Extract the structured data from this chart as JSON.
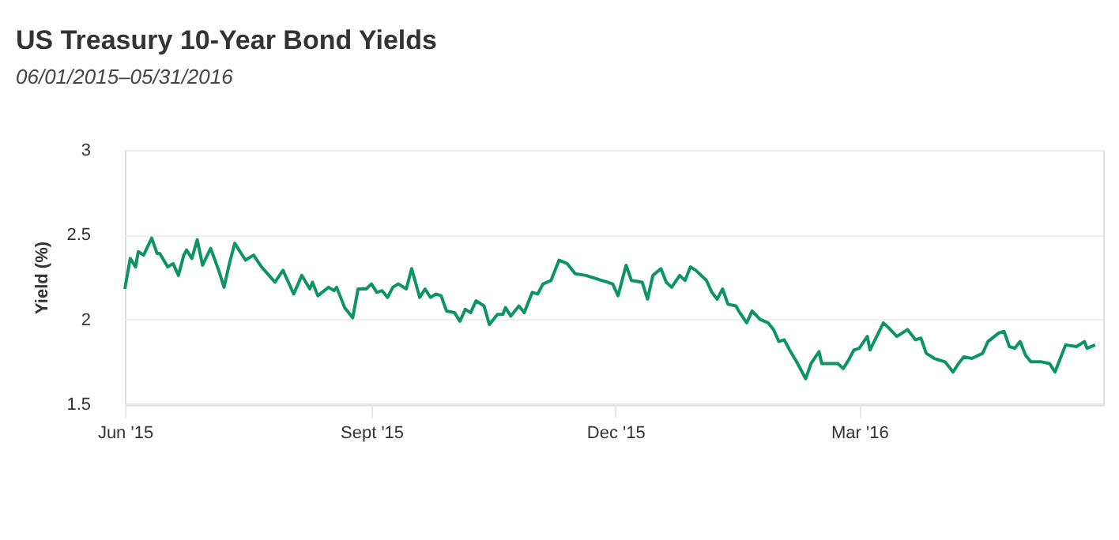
{
  "chart_data": {
    "type": "line",
    "title": "US Treasury 10-Year Bond Yields",
    "subtitle": "06/01/2015–05/31/2016",
    "ylabel": "Yield (%)",
    "xlim": [
      "2015-06-01",
      "2016-05-31"
    ],
    "xticks": [
      {
        "value": "2015-06-01",
        "label": "Jun '15"
      },
      {
        "value": "2015-09-01",
        "label": "Sept '15"
      },
      {
        "value": "2015-12-01",
        "label": "Dec '15"
      },
      {
        "value": "2016-03-01",
        "label": "Mar '16"
      }
    ],
    "ylim": [
      1.5,
      3
    ],
    "yticks": [
      1.5,
      2,
      2.5,
      3
    ],
    "grid": "y",
    "marker": "none",
    "line_style": "solid",
    "x": [
      "2015-06-01",
      "2015-06-03",
      "2015-06-05",
      "2015-06-06",
      "2015-06-08",
      "2015-06-11",
      "2015-06-13",
      "2015-06-14",
      "2015-06-17",
      "2015-06-19",
      "2015-06-21",
      "2015-06-23",
      "2015-06-24",
      "2015-06-26",
      "2015-06-28",
      "2015-06-30",
      "2015-07-03",
      "2015-07-06",
      "2015-07-08",
      "2015-07-10",
      "2015-07-12",
      "2015-07-16",
      "2015-07-19",
      "2015-07-22",
      "2015-07-27",
      "2015-07-30",
      "2015-08-03",
      "2015-08-06",
      "2015-08-09",
      "2015-08-10",
      "2015-08-12",
      "2015-08-16",
      "2015-08-18",
      "2015-08-19",
      "2015-08-22",
      "2015-08-25",
      "2015-08-27",
      "2015-08-30",
      "2015-09-01",
      "2015-09-03",
      "2015-09-05",
      "2015-09-07",
      "2015-09-09",
      "2015-09-11",
      "2015-09-14",
      "2015-09-16",
      "2015-09-19",
      "2015-09-21",
      "2015-09-23",
      "2015-09-25",
      "2015-09-27",
      "2015-09-29",
      "2015-10-02",
      "2015-10-04",
      "2015-10-06",
      "2015-10-08",
      "2015-10-10",
      "2015-10-13",
      "2015-10-15",
      "2015-10-18",
      "2015-10-20",
      "2015-10-21",
      "2015-10-23",
      "2015-10-26",
      "2015-10-28",
      "2015-10-31",
      "2015-11-02",
      "2015-11-04",
      "2015-11-07",
      "2015-11-10",
      "2015-11-13",
      "2015-11-16",
      "2015-11-20",
      "2015-11-24",
      "2015-11-28",
      "2015-11-30",
      "2015-12-02",
      "2015-12-05",
      "2015-12-07",
      "2015-12-11",
      "2015-12-13",
      "2015-12-15",
      "2015-12-18",
      "2015-12-20",
      "2015-12-22",
      "2015-12-25",
      "2015-12-27",
      "2015-12-29",
      "2015-12-31",
      "2016-01-04",
      "2016-01-06",
      "2016-01-08",
      "2016-01-10",
      "2016-01-12",
      "2016-01-15",
      "2016-01-16",
      "2016-01-19",
      "2016-01-21",
      "2016-01-24",
      "2016-01-27",
      "2016-01-29",
      "2016-01-31",
      "2016-02-02",
      "2016-02-04",
      "2016-02-07",
      "2016-02-10",
      "2016-02-12",
      "2016-02-15",
      "2016-02-16",
      "2016-02-19",
      "2016-02-22",
      "2016-02-24",
      "2016-02-26",
      "2016-02-28",
      "2016-03-01",
      "2016-03-04",
      "2016-03-05",
      "2016-03-10",
      "2016-03-12",
      "2016-03-15",
      "2016-03-19",
      "2016-03-22",
      "2016-03-24",
      "2016-03-26",
      "2016-03-29",
      "2016-04-02",
      "2016-04-05",
      "2016-04-07",
      "2016-04-09",
      "2016-04-12",
      "2016-04-16",
      "2016-04-18",
      "2016-04-22",
      "2016-04-24",
      "2016-04-26",
      "2016-04-28",
      "2016-04-30",
      "2016-05-02",
      "2016-05-04",
      "2016-05-08",
      "2016-05-11",
      "2016-05-13",
      "2016-05-15",
      "2016-05-17",
      "2016-05-21",
      "2016-05-24",
      "2016-05-25",
      "2016-05-28"
    ],
    "series": [
      {
        "color": "#0d9465",
        "values": [
          2.18,
          2.36,
          2.31,
          2.4,
          2.38,
          2.48,
          2.39,
          2.39,
          2.31,
          2.33,
          2.26,
          2.38,
          2.41,
          2.36,
          2.47,
          2.32,
          2.42,
          2.29,
          2.19,
          2.33,
          2.45,
          2.35,
          2.38,
          2.31,
          2.22,
          2.29,
          2.15,
          2.26,
          2.18,
          2.22,
          2.14,
          2.19,
          2.17,
          2.19,
          2.07,
          2.01,
          2.18,
          2.18,
          2.21,
          2.16,
          2.17,
          2.13,
          2.19,
          2.21,
          2.18,
          2.3,
          2.13,
          2.18,
          2.13,
          2.15,
          2.14,
          2.05,
          2.04,
          1.99,
          2.06,
          2.04,
          2.11,
          2.08,
          1.97,
          2.03,
          2.03,
          2.07,
          2.02,
          2.08,
          2.04,
          2.16,
          2.15,
          2.21,
          2.23,
          2.35,
          2.33,
          2.27,
          2.26,
          2.24,
          2.22,
          2.21,
          2.14,
          2.32,
          2.23,
          2.22,
          2.12,
          2.26,
          2.3,
          2.22,
          2.19,
          2.26,
          2.23,
          2.31,
          2.29,
          2.23,
          2.16,
          2.12,
          2.18,
          2.09,
          2.08,
          2.05,
          1.98,
          2.05,
          2.0,
          1.98,
          1.94,
          1.87,
          1.88,
          1.82,
          1.74,
          1.65,
          1.74,
          1.81,
          1.74,
          1.74,
          1.74,
          1.71,
          1.76,
          1.82,
          1.83,
          1.9,
          1.82,
          1.98,
          1.95,
          1.9,
          1.94,
          1.88,
          1.89,
          1.8,
          1.77,
          1.75,
          1.69,
          1.74,
          1.78,
          1.77,
          1.8,
          1.87,
          1.92,
          1.93,
          1.84,
          1.83,
          1.87,
          1.79,
          1.75,
          1.75,
          1.74,
          1.69,
          1.77,
          1.85,
          1.84,
          1.87,
          1.83,
          1.85
        ]
      }
    ]
  }
}
